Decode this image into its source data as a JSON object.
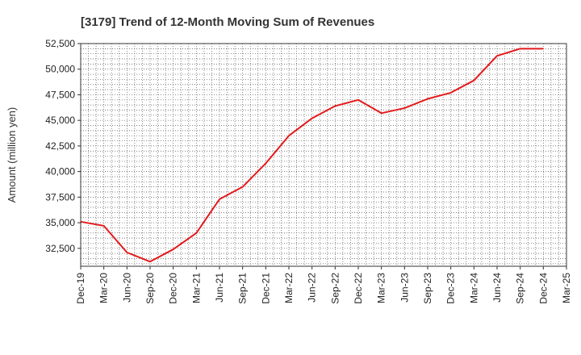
{
  "chart_data": {
    "type": "line",
    "title": "[3179]  Trend of 12-Month Moving Sum of Revenues",
    "xlabel": "",
    "ylabel": "Amount (million yen)",
    "ylim": [
      30750,
      52500
    ],
    "yticks": [
      32500,
      35000,
      37500,
      40000,
      42500,
      45000,
      47500,
      50000,
      52500
    ],
    "ytick_labels": [
      "32,500",
      "35,000",
      "37,500",
      "40,000",
      "42,500",
      "45,000",
      "47,500",
      "50,000",
      "52,500"
    ],
    "categories": [
      "Dec-19",
      "Mar-20",
      "Jun-20",
      "Sep-20",
      "Dec-20",
      "Mar-21",
      "Jun-21",
      "Sep-21",
      "Dec-21",
      "Mar-22",
      "Jun-22",
      "Sep-22",
      "Dec-22",
      "Mar-23",
      "Jun-23",
      "Sep-23",
      "Dec-23",
      "Mar-24",
      "Jun-24",
      "Sep-24",
      "Dec-24",
      "Mar-25"
    ],
    "series": [
      {
        "color": "#e31a1c",
        "values": [
          35100,
          34700,
          32100,
          31200,
          32400,
          34000,
          37300,
          38500,
          40800,
          43500,
          45200,
          46400,
          47000,
          45700,
          46200,
          47100,
          47700,
          48900,
          51300,
          52000,
          52000,
          null
        ]
      }
    ],
    "grid": true,
    "legend": "none"
  }
}
